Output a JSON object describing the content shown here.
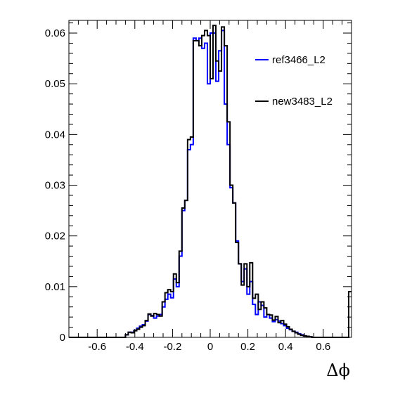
{
  "chart_data": {
    "type": "line",
    "style": "step-histogram",
    "xlabel": "Δϕ",
    "ylabel": "",
    "xlim": [
      -0.75,
      0.75
    ],
    "ylim": [
      0,
      0.0625
    ],
    "xticks": [
      -0.6,
      -0.4,
      -0.2,
      0,
      0.2,
      0.4,
      0.6
    ],
    "xtick_labels": [
      "-0.6",
      "-0.4",
      "-0.2",
      "0",
      "0.2",
      "0.4",
      "0.6"
    ],
    "yticks": [
      0,
      0.01,
      0.02,
      0.03,
      0.04,
      0.05,
      0.06
    ],
    "ytick_labels": [
      "0",
      "0.01",
      "0.02",
      "0.03",
      "0.04",
      "0.05",
      "0.06"
    ],
    "grid": false,
    "legend_position": "top-right",
    "bin_low_edges": [
      -0.75,
      -0.735,
      -0.72,
      -0.705,
      -0.69,
      -0.675,
      -0.66,
      -0.645,
      -0.63,
      -0.615,
      -0.6,
      -0.585,
      -0.57,
      -0.555,
      -0.54,
      -0.525,
      -0.51,
      -0.495,
      -0.48,
      -0.465,
      -0.45,
      -0.435,
      -0.42,
      -0.405,
      -0.39,
      -0.375,
      -0.36,
      -0.345,
      -0.33,
      -0.315,
      -0.3,
      -0.285,
      -0.27,
      -0.255,
      -0.24,
      -0.225,
      -0.21,
      -0.195,
      -0.18,
      -0.165,
      -0.15,
      -0.135,
      -0.12,
      -0.105,
      -0.09,
      -0.075,
      -0.06,
      -0.045,
      -0.03,
      -0.015,
      0,
      0.015,
      0.03,
      0.045,
      0.06,
      0.075,
      0.09,
      0.105,
      0.12,
      0.135,
      0.15,
      0.165,
      0.18,
      0.195,
      0.21,
      0.225,
      0.24,
      0.255,
      0.27,
      0.285,
      0.3,
      0.315,
      0.33,
      0.345,
      0.36,
      0.375,
      0.39,
      0.405,
      0.42,
      0.435,
      0.45,
      0.465,
      0.48,
      0.495,
      0.51,
      0.525,
      0.54,
      0.555,
      0.57,
      0.585,
      0.6,
      0.615,
      0.63,
      0.645,
      0.66,
      0.675,
      0.69,
      0.705,
      0.72,
      0.735
    ],
    "bin_width": 0.015,
    "series": [
      {
        "name": "ref3466_L2",
        "color": "#0000ff",
        "values": [
          0,
          0,
          0,
          0,
          0,
          0,
          0,
          0,
          0,
          0,
          0,
          0,
          0,
          0,
          0,
          0,
          0,
          0,
          0,
          0,
          0.0005,
          0.001,
          0.001,
          0.0014,
          0.0018,
          0.0022,
          0.0025,
          0.0032,
          0.0045,
          0.0043,
          0.0038,
          0.0042,
          0.0045,
          0.006,
          0.0075,
          0.0085,
          0.0078,
          0.0115,
          0.01,
          0.016,
          0.025,
          0.027,
          0.037,
          0.038,
          0.059,
          0.0585,
          0.059,
          0.057,
          0.058,
          0.05,
          0.06,
          0.06,
          0.0505,
          0.0565,
          0.0605,
          0.046,
          0.038,
          0.0295,
          0.0265,
          0.019,
          0.0145,
          0.011,
          0.0135,
          0.0085,
          0.011,
          0.0065,
          0.0045,
          0.007,
          0.0063,
          0.004,
          0.0045,
          0.0038,
          0.0031,
          0.0035,
          0.0032,
          0.0027,
          0.0023,
          0.0018,
          0.0015,
          0.0012,
          0.001,
          0.0007,
          0.0005,
          0.0003,
          0.0002,
          0.0001,
          0,
          0,
          0,
          0,
          0,
          0,
          0,
          0,
          0,
          0,
          0,
          0,
          0,
          0.009
        ]
      },
      {
        "name": "new3483_L2",
        "color": "#000000",
        "values": [
          0,
          0,
          0,
          0,
          0,
          0,
          0,
          0,
          0,
          0,
          0,
          0,
          0,
          0,
          0,
          0,
          0,
          0,
          0,
          0,
          0.0005,
          0.001,
          0.0009,
          0.0013,
          0.0016,
          0.002,
          0.0023,
          0.0033,
          0.0046,
          0.0042,
          0.0047,
          0.0045,
          0.0042,
          0.007,
          0.0088,
          0.0094,
          0.009,
          0.0125,
          0.0108,
          0.017,
          0.0255,
          0.027,
          0.039,
          0.0395,
          0.0585,
          0.0585,
          0.0575,
          0.0595,
          0.0605,
          0.0595,
          0.051,
          0.0615,
          0.0545,
          0.0525,
          0.0612,
          0.0575,
          0.0425,
          0.03,
          0.0265,
          0.0187,
          0.0145,
          0.0103,
          0.0145,
          0.01,
          0.0147,
          0.0077,
          0.0085,
          0.0055,
          0.007,
          0.0058,
          0.0045,
          0.0044,
          0.0034,
          0.0041,
          0.0029,
          0.0033,
          0.0026,
          0.0021,
          0.0016,
          0.0012,
          0.0009,
          0.0006,
          0.0004,
          0.0003,
          0.0002,
          0.0001,
          0,
          0,
          0,
          0,
          0,
          0,
          0,
          0,
          0,
          0,
          0,
          0,
          0,
          0.009
        ]
      }
    ]
  }
}
